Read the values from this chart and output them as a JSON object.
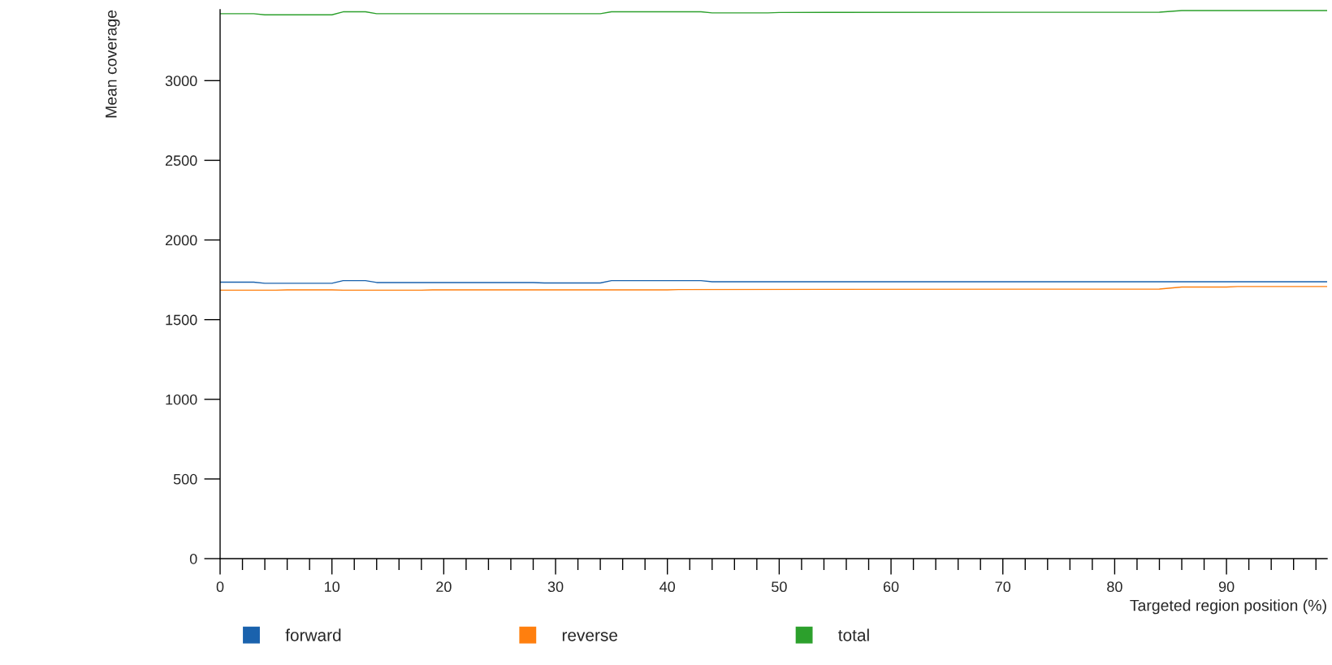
{
  "chart_data": {
    "type": "line",
    "xlabel": "Targeted region position (%)",
    "ylabel": "Mean coverage",
    "xlim": [
      0,
      99
    ],
    "ylim": [
      0,
      3445
    ],
    "xticks": [
      0,
      {
        "value": 2,
        "label": null
      },
      {
        "value": 4,
        "label": null
      },
      {
        "value": 6,
        "label": null
      },
      {
        "value": 8,
        "label": null
      },
      10,
      {
        "value": 12,
        "label": null
      },
      {
        "value": 14,
        "label": null
      },
      {
        "value": 16,
        "label": null
      },
      {
        "value": 18,
        "label": null
      },
      20,
      {
        "value": 22,
        "label": null
      },
      {
        "value": 24,
        "label": null
      },
      {
        "value": 26,
        "label": null
      },
      {
        "value": 28,
        "label": null
      },
      30,
      {
        "value": 32,
        "label": null
      },
      {
        "value": 34,
        "label": null
      },
      {
        "value": 36,
        "label": null
      },
      {
        "value": 38,
        "label": null
      },
      40,
      {
        "value": 42,
        "label": null
      },
      {
        "value": 44,
        "label": null
      },
      {
        "value": 46,
        "label": null
      },
      {
        "value": 48,
        "label": null
      },
      50,
      {
        "value": 52,
        "label": null
      },
      {
        "value": 54,
        "label": null
      },
      {
        "value": 56,
        "label": null
      },
      {
        "value": 58,
        "label": null
      },
      60,
      {
        "value": 62,
        "label": null
      },
      {
        "value": 64,
        "label": null
      },
      {
        "value": 66,
        "label": null
      },
      {
        "value": 68,
        "label": null
      },
      70,
      {
        "value": 72,
        "label": null
      },
      {
        "value": 74,
        "label": null
      },
      {
        "value": 76,
        "label": null
      },
      {
        "value": 78,
        "label": null
      },
      80,
      {
        "value": 82,
        "label": null
      },
      {
        "value": 84,
        "label": null
      },
      {
        "value": 86,
        "label": null
      },
      {
        "value": 88,
        "label": null
      },
      90,
      {
        "value": 92,
        "label": null
      },
      {
        "value": 94,
        "label": null
      },
      {
        "value": 96,
        "label": null
      },
      {
        "value": 98,
        "label": null
      }
    ],
    "yticks": [
      0,
      500,
      1000,
      1500,
      2000,
      2500,
      3000
    ],
    "grid": false,
    "legend": "bottom",
    "marker": "none",
    "line_style": "solid",
    "series": [
      {
        "name": "forward",
        "color": "#1a62ad",
        "x": [
          0,
          3,
          4,
          10,
          11,
          13,
          14,
          28,
          29,
          34,
          35,
          43,
          44,
          99
        ],
        "values": [
          1735,
          1735,
          1728,
          1728,
          1745,
          1745,
          1733,
          1733,
          1730,
          1730,
          1745,
          1745,
          1738,
          1738
        ]
      },
      {
        "name": "reverse",
        "color": "#ff7f0e",
        "x": [
          0,
          5,
          6,
          10,
          11,
          18,
          19,
          40,
          41,
          84,
          86,
          90,
          91,
          99
        ],
        "values": [
          1685,
          1685,
          1687,
          1687,
          1685,
          1685,
          1687,
          1687,
          1689,
          1692,
          1705,
          1705,
          1708,
          1708
        ]
      },
      {
        "name": "total",
        "color": "#2ca02c",
        "x": [
          0,
          3,
          4,
          10,
          11,
          13,
          14,
          34,
          35,
          43,
          44,
          49,
          50,
          84,
          86,
          99
        ],
        "values": [
          3420,
          3420,
          3413,
          3413,
          3432,
          3432,
          3420,
          3420,
          3432,
          3432,
          3425,
          3425,
          3428,
          3430,
          3440,
          3440
        ]
      }
    ]
  }
}
